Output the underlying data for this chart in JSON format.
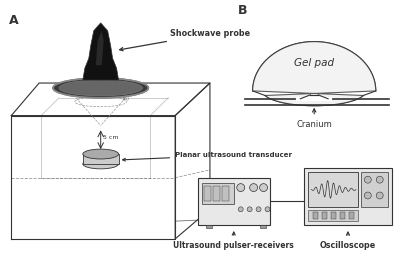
{
  "bg_color": "#ffffff",
  "label_A": "A",
  "label_B": "B",
  "text_shockwave": "Shockwave probe",
  "text_planar": "Planar ultrasound transducer",
  "text_gelpad": "Gel pad",
  "text_cranium": "Cranium",
  "text_pulser": "Ultrasound pulser-receivers",
  "text_oscilloscope": "Oscilloscope",
  "text_5cm": "5 cm",
  "lc": "#333333",
  "dark": "#1a1a1a",
  "probe_dark": "#1c1c1c",
  "disk_gray": "#555555",
  "light_gray": "#e0e0e0",
  "mid_gray": "#bbbbbb"
}
